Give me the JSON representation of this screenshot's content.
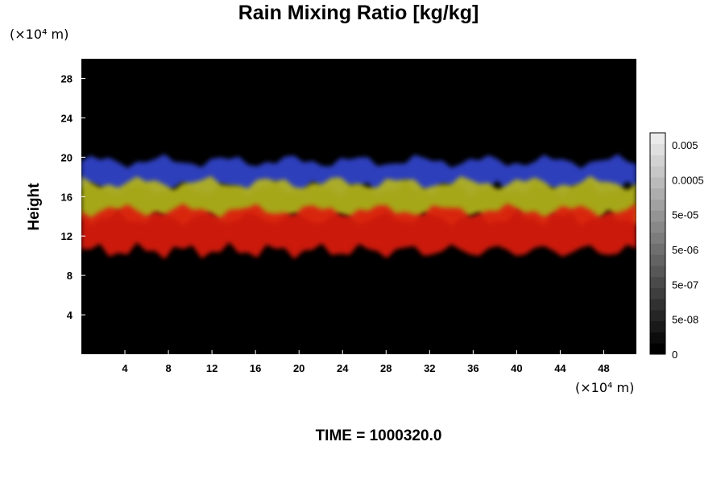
{
  "chart_data": {
    "type": "heatmap",
    "title": "Rain Mixing Ratio [kg/kg]",
    "xlabel": "",
    "ylabel": "Height",
    "x_unit": "(×10⁴ m)",
    "y_unit": "(×10⁴ m)",
    "footer": "TIME = 1000320.0",
    "xlim": [
      0,
      51
    ],
    "ylim": [
      0,
      30
    ],
    "x_ticks": [
      4,
      8,
      12,
      16,
      20,
      24,
      28,
      32,
      36,
      40,
      44,
      48
    ],
    "y_ticks": [
      4,
      8,
      12,
      16,
      20,
      24,
      28
    ],
    "colorbar": {
      "labels": [
        "0.005",
        "0.0005",
        "5e-05",
        "5e-06",
        "5e-07",
        "5e-08",
        "0"
      ],
      "levels": 20
    },
    "layers": [
      {
        "name": "upper",
        "color": "#3344cc",
        "y_bottom": 16.8,
        "y_top": 19.6
      },
      {
        "name": "middle",
        "color": "#b5b51c",
        "y_bottom": 13.8,
        "y_top": 17.4
      },
      {
        "name": "lower",
        "color": "#dd1a10",
        "y_bottom": 10.5,
        "y_top": 14.6
      }
    ],
    "background": "#000000"
  }
}
